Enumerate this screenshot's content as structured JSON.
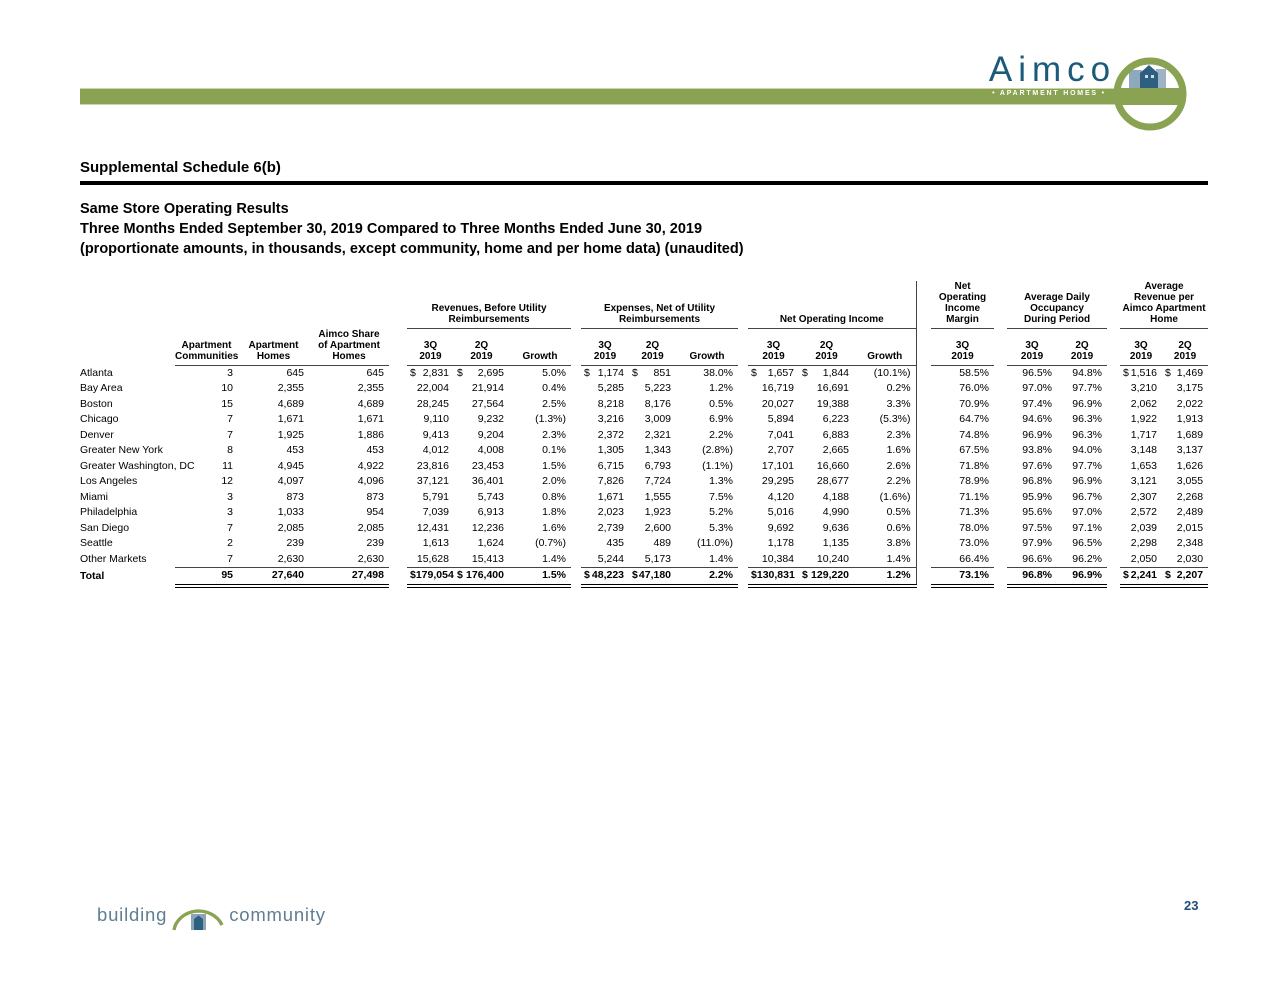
{
  "header": {
    "brand": "Aimco",
    "tagline": "• APARTMENT HOMES •",
    "schedule_title": "Supplemental Schedule 6(b)",
    "subtitle1": "Same Store Operating Results",
    "subtitle2": "Three Months Ended September 30, 2019 Compared to Three Months Ended June 30, 2019",
    "subtitle3": "(proportionate amounts, in thousands, except community, home and per home data) (unaudited)"
  },
  "footer": {
    "word1": "building",
    "word2": "community",
    "page_number": "23"
  },
  "colors": {
    "olive_green": "#8AA353",
    "brand_blue": "#1B5A7A",
    "page_number_blue": "#1F4E79",
    "building_slate": "#8BA4B8",
    "building_dark": "#2C5F80",
    "footer_text": "#5F7E93"
  },
  "table": {
    "group_headers": [
      {
        "label": "Revenues, Before Utility\nReimbursements"
      },
      {
        "label": "Expenses, Net of Utility\nReimbursements"
      },
      {
        "label": "Net Operating Income"
      },
      {
        "label": "Net Operating\nIncome\nMargin"
      },
      {
        "label": "Average Daily\nOccupancy\nDuring Period"
      },
      {
        "label": "Average\nRevenue per\nAimco Apartment\nHome"
      }
    ],
    "sub_headers": {
      "communities": "Apartment\nCommunities",
      "homes": "Apartment\nHomes",
      "share": "Aimco Share\nof Apartment\nHomes",
      "q3": "3Q\n2019",
      "q2": "2Q\n2019",
      "growth": "Growth"
    },
    "rows": [
      {
        "market": "Atlanta",
        "dollar": true,
        "cells": [
          "3",
          "645",
          "645",
          "2,831",
          "2,695",
          "5.0%",
          "1,174",
          "851",
          "38.0%",
          "1,657",
          "1,844",
          "(10.1%)",
          "58.5%",
          "96.5%",
          "94.8%",
          "1,516",
          "1,469"
        ]
      },
      {
        "market": "Bay Area",
        "dollar": false,
        "cells": [
          "10",
          "2,355",
          "2,355",
          "22,004",
          "21,914",
          "0.4%",
          "5,285",
          "5,223",
          "1.2%",
          "16,719",
          "16,691",
          "0.2%",
          "76.0%",
          "97.0%",
          "97.7%",
          "3,210",
          "3,175"
        ]
      },
      {
        "market": "Boston",
        "dollar": false,
        "cells": [
          "15",
          "4,689",
          "4,689",
          "28,245",
          "27,564",
          "2.5%",
          "8,218",
          "8,176",
          "0.5%",
          "20,027",
          "19,388",
          "3.3%",
          "70.9%",
          "97.4%",
          "96.9%",
          "2,062",
          "2,022"
        ]
      },
      {
        "market": "Chicago",
        "dollar": false,
        "cells": [
          "7",
          "1,671",
          "1,671",
          "9,110",
          "9,232",
          "(1.3%)",
          "3,216",
          "3,009",
          "6.9%",
          "5,894",
          "6,223",
          "(5.3%)",
          "64.7%",
          "94.6%",
          "96.3%",
          "1,922",
          "1,913"
        ]
      },
      {
        "market": "Denver",
        "dollar": false,
        "cells": [
          "7",
          "1,925",
          "1,886",
          "9,413",
          "9,204",
          "2.3%",
          "2,372",
          "2,321",
          "2.2%",
          "7,041",
          "6,883",
          "2.3%",
          "74.8%",
          "96.9%",
          "96.3%",
          "1,717",
          "1,689"
        ]
      },
      {
        "market": "Greater New York",
        "dollar": false,
        "cells": [
          "8",
          "453",
          "453",
          "4,012",
          "4,008",
          "0.1%",
          "1,305",
          "1,343",
          "(2.8%)",
          "2,707",
          "2,665",
          "1.6%",
          "67.5%",
          "93.8%",
          "94.0%",
          "3,148",
          "3,137"
        ]
      },
      {
        "market": "Greater Washington, DC",
        "dollar": false,
        "cells": [
          "11",
          "4,945",
          "4,922",
          "23,816",
          "23,453",
          "1.5%",
          "6,715",
          "6,793",
          "(1.1%)",
          "17,101",
          "16,660",
          "2.6%",
          "71.8%",
          "97.6%",
          "97.7%",
          "1,653",
          "1,626"
        ]
      },
      {
        "market": "Los Angeles",
        "dollar": false,
        "cells": [
          "12",
          "4,097",
          "4,096",
          "37,121",
          "36,401",
          "2.0%",
          "7,826",
          "7,724",
          "1.3%",
          "29,295",
          "28,677",
          "2.2%",
          "78.9%",
          "96.8%",
          "96.9%",
          "3,121",
          "3,055"
        ]
      },
      {
        "market": "Miami",
        "dollar": false,
        "cells": [
          "3",
          "873",
          "873",
          "5,791",
          "5,743",
          "0.8%",
          "1,671",
          "1,555",
          "7.5%",
          "4,120",
          "4,188",
          "(1.6%)",
          "71.1%",
          "95.9%",
          "96.7%",
          "2,307",
          "2,268"
        ]
      },
      {
        "market": "Philadelphia",
        "dollar": false,
        "cells": [
          "3",
          "1,033",
          "954",
          "7,039",
          "6,913",
          "1.8%",
          "2,023",
          "1,923",
          "5.2%",
          "5,016",
          "4,990",
          "0.5%",
          "71.3%",
          "95.6%",
          "97.0%",
          "2,572",
          "2,489"
        ]
      },
      {
        "market": "San Diego",
        "dollar": false,
        "cells": [
          "7",
          "2,085",
          "2,085",
          "12,431",
          "12,236",
          "1.6%",
          "2,739",
          "2,600",
          "5.3%",
          "9,692",
          "9,636",
          "0.6%",
          "78.0%",
          "97.5%",
          "97.1%",
          "2,039",
          "2,015"
        ]
      },
      {
        "market": "Seattle",
        "dollar": false,
        "cells": [
          "2",
          "239",
          "239",
          "1,613",
          "1,624",
          "(0.7%)",
          "435",
          "489",
          "(11.0%)",
          "1,178",
          "1,135",
          "3.8%",
          "73.0%",
          "97.9%",
          "96.5%",
          "2,298",
          "2,348"
        ]
      },
      {
        "market": "Other Markets",
        "dollar": false,
        "cells": [
          "7",
          "2,630",
          "2,630",
          "15,628",
          "15,413",
          "1.4%",
          "5,244",
          "5,173",
          "1.4%",
          "10,384",
          "10,240",
          "1.4%",
          "66.4%",
          "96.6%",
          "96.2%",
          "2,050",
          "2,030"
        ]
      }
    ],
    "total": {
      "market": "Total",
      "dollar": true,
      "cells": [
        "95",
        "27,640",
        "27,498",
        "179,054",
        "176,400",
        "1.5%",
        "48,223",
        "47,180",
        "2.2%",
        "130,831",
        "129,220",
        "1.2%",
        "73.1%",
        "96.8%",
        "96.9%",
        "2,241",
        "2,207"
      ]
    }
  }
}
